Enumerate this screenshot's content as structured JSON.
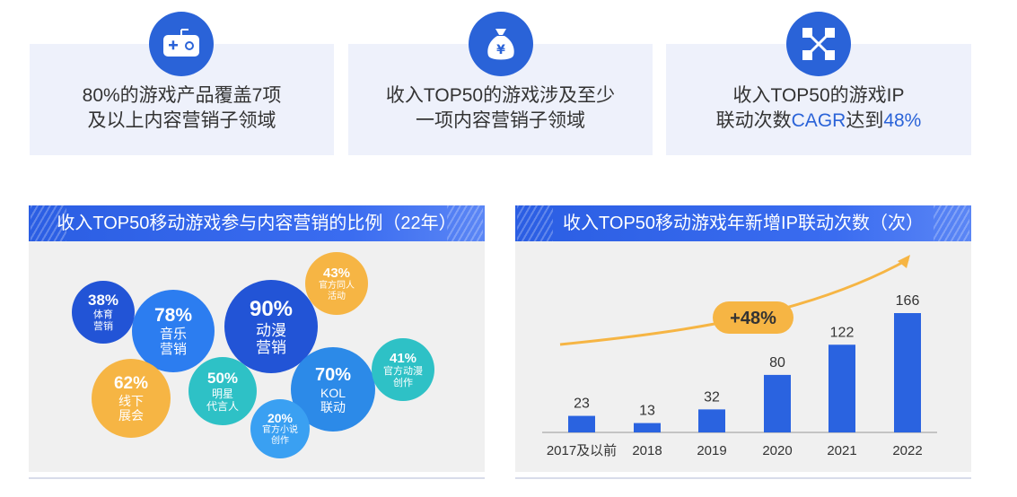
{
  "cards": [
    {
      "lines": [
        [
          {
            "t": "80%的游戏产品覆盖7项"
          }
        ],
        [
          {
            "t": "及以上内容营销子领域"
          }
        ]
      ],
      "icon": "gamepad-icon"
    },
    {
      "lines": [
        [
          {
            "t": "收入TOP50的游戏涉及至少"
          }
        ],
        [
          {
            "t": "一项内容营销子领域"
          }
        ]
      ],
      "icon": "money-bag-icon"
    },
    {
      "lines": [
        [
          {
            "t": "收入TOP50的游戏IP"
          }
        ],
        [
          {
            "t": "联动次数"
          },
          {
            "t": "CAGR",
            "hl": true
          },
          {
            "t": "达到"
          },
          {
            "t": "48%",
            "hl": true
          }
        ]
      ],
      "icon": "network-icon"
    }
  ],
  "left_panel": {
    "title": "收入TOP50移动游戏参与内容营销的比例（22年）",
    "bubbles": [
      {
        "pct": "38%",
        "label": "体育\n营销",
        "color": "#2254d6"
      },
      {
        "pct": "78%",
        "label": "音乐\n营销",
        "color": "#2c7df0"
      },
      {
        "pct": "90%",
        "label": "动漫\n营销",
        "color": "#2254d6"
      },
      {
        "pct": "43%",
        "label": "官方同人\n活动",
        "color": "#f6b544"
      },
      {
        "pct": "62%",
        "label": "线下\n展会",
        "color": "#f6b544"
      },
      {
        "pct": "50%",
        "label": "明星\n代言人",
        "color": "#2ec1c6"
      },
      {
        "pct": "70%",
        "label": "KOL\n联动",
        "color": "#2c8ae8"
      },
      {
        "pct": "41%",
        "label": "官方动漫\n创作",
        "color": "#2ec1c6"
      },
      {
        "pct": "20%",
        "label": "官方小说\n创作",
        "color": "#3aa0f2"
      }
    ]
  },
  "right_panel": {
    "title": "收入TOP50移动游戏年新增IP联动次数（次）",
    "badge": "+48%"
  },
  "chart_data": {
    "type": "bar",
    "title": "收入TOP50移动游戏年新增IP联动次数（次）",
    "categories": [
      "2017及以前",
      "2018",
      "2019",
      "2020",
      "2021",
      "2022"
    ],
    "values": [
      23,
      13,
      32,
      80,
      122,
      166
    ],
    "annotation": "+48%",
    "color": "#2a63e0"
  }
}
